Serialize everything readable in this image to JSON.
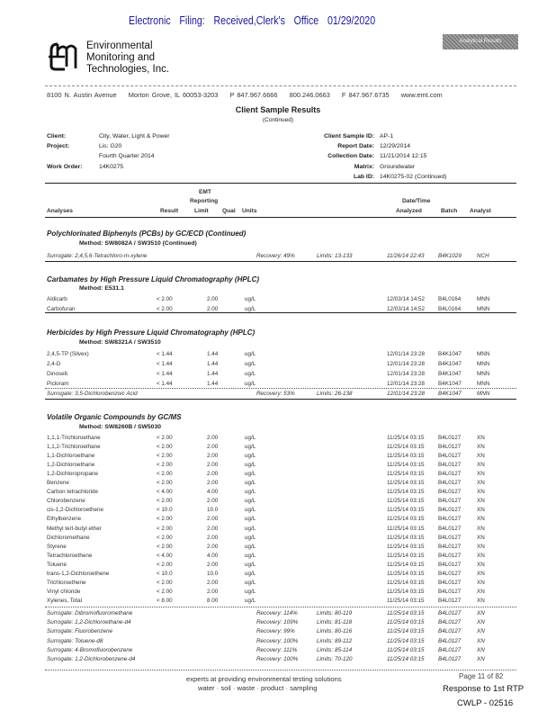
{
  "filing_header": "Electronic Filing: Received,Clerk's Office 01/29/2020",
  "stamp_text": "Analytical Results",
  "company": {
    "name_lines": [
      "Environmental",
      "Monitoring and",
      "Technologies, Inc."
    ],
    "address": [
      "8100 N. Austin Avenue",
      "Morton Grove, IL 60053-3203",
      "P 847.967.6666",
      "800.246.0663",
      "F 847.967.6735",
      "www.emt.com"
    ]
  },
  "report": {
    "title": "Client Sample Results",
    "subtitle": "(Continued)"
  },
  "info": {
    "client_label": "Client:",
    "client": "City, Water, Light & Power",
    "project_label": "Project:",
    "project": "Lis: G20",
    "project2": "Fourth Quarter 2014",
    "work_order_label": "Work Order:",
    "work_order": "14K0275",
    "sample_id_label": "Client Sample ID:",
    "sample_id": "AP-1",
    "report_date_label": "Report Date:",
    "report_date": "12/29/2014",
    "collection_date_label": "Collection Date:",
    "collection_date": "11/21/2014  12:15",
    "matrix_label": "Matrix:",
    "matrix": "Groundwater",
    "lab_id_label": "Lab ID:",
    "lab_id": "14K0275-02 (Continued)"
  },
  "columns": {
    "emt": "EMT",
    "reporting": "Reporting",
    "datetime": "Date/Time",
    "analyses": "Analyses",
    "result": "Result",
    "limit": "Limit",
    "qual": "Qual",
    "units": "Units",
    "analyzed": "Analyzed",
    "batch": "Batch",
    "analyst": "Analyst"
  },
  "sections": [
    {
      "title": "Polychlorinated Biphenyls (PCBs) by GC/ECD (Continued)",
      "method": "Method:  SW8082A / SW3510 (Continued)",
      "rows": [],
      "surrogates": [
        {
          "name": "Surrogate: 2,4,5,6-Tetrachloro-m-xylene",
          "recovery": "Recovery: 49%",
          "limits": "Limits: 13-133",
          "date": "11/26/14 22:43",
          "batch": "B4K1029",
          "analyst": "NCH"
        }
      ]
    },
    {
      "title": "Carbamates by High Pressure Liquid Chromatography (HPLC)",
      "method": "Method:  E531.1",
      "rows": [
        {
          "name": "Aldicarb",
          "result": "< 2.00",
          "limit": "2.00",
          "units": "ug/L",
          "date": "12/03/14 14:52",
          "batch": "B4L0164",
          "analyst": "MNN"
        },
        {
          "name": "Carbofuran",
          "result": "< 2.00",
          "limit": "2.00",
          "units": "ug/L",
          "date": "12/03/14 14:52",
          "batch": "B4L0164",
          "analyst": "MNN"
        }
      ],
      "surrogates": []
    },
    {
      "title": "Herbicides by High Pressure Liquid Chromatography (HPLC)",
      "method": "Method:  SW8321A / SW3510",
      "rows": [
        {
          "name": "2,4,5-TP (Silvex)",
          "result": "< 1.44",
          "limit": "1.44",
          "units": "ug/L",
          "date": "12/01/14 23:28",
          "batch": "B4K1047",
          "analyst": "MNN"
        },
        {
          "name": "2,4-D",
          "result": "< 1.44",
          "limit": "1.44",
          "units": "ug/L",
          "date": "12/01/14 23:28",
          "batch": "B4K1047",
          "analyst": "MNN"
        },
        {
          "name": "Dinoseb",
          "result": "< 1.44",
          "limit": "1.44",
          "units": "ug/L",
          "date": "12/01/14 23:28",
          "batch": "B4K1047",
          "analyst": "MNN"
        },
        {
          "name": "Picloram",
          "result": "< 1.44",
          "limit": "1.44",
          "units": "ug/L",
          "date": "12/01/14 23:28",
          "batch": "B4K1047",
          "analyst": "MNN"
        }
      ],
      "surrogates": [
        {
          "name": "Surrogate: 3,5-Dichlorobenzoic Acid",
          "recovery": "Recovery: 53%",
          "limits": "Limits: 26-138",
          "date": "12/01/14 23:28",
          "batch": "B4K1047",
          "analyst": "MNN"
        }
      ]
    },
    {
      "title": "Volatile Organic Compounds by GC/MS",
      "method": "Method:  SW8260B / SW5030",
      "rows": [
        {
          "name": "1,1,1-Trichloroethane",
          "result": "< 2.00",
          "limit": "2.00",
          "units": "ug/L",
          "date": "11/25/14 03:15",
          "batch": "B4L0127",
          "analyst": "XN"
        },
        {
          "name": "1,1,2-Trichloroethane",
          "result": "< 2.00",
          "limit": "2.00",
          "units": "ug/L",
          "date": "11/25/14 03:15",
          "batch": "B4L0127",
          "analyst": "XN"
        },
        {
          "name": "1,1-Dichloroethane",
          "result": "< 2.00",
          "limit": "2.00",
          "units": "ug/L",
          "date": "11/25/14 03:15",
          "batch": "B4L0127",
          "analyst": "XN"
        },
        {
          "name": "1,2-Dichloroethane",
          "result": "< 2.00",
          "limit": "2.00",
          "units": "ug/L",
          "date": "11/25/14 03:15",
          "batch": "B4L0127",
          "analyst": "XN"
        },
        {
          "name": "1,2-Dichloropropane",
          "result": "< 2.00",
          "limit": "2.00",
          "units": "ug/L",
          "date": "11/25/14 03:15",
          "batch": "B4L0127",
          "analyst": "XN"
        },
        {
          "name": "Benzene",
          "result": "< 2.00",
          "limit": "2.00",
          "units": "ug/L",
          "date": "11/25/14 03:15",
          "batch": "B4L0127",
          "analyst": "XN"
        },
        {
          "name": "Carbon tetrachloride",
          "result": "< 4.00",
          "limit": "4.00",
          "units": "ug/L",
          "date": "11/25/14 03:15",
          "batch": "B4L0127",
          "analyst": "XN"
        },
        {
          "name": "Chlorobenzene",
          "result": "< 2.00",
          "limit": "2.00",
          "units": "ug/L",
          "date": "11/25/14 03:15",
          "batch": "B4L0127",
          "analyst": "XN"
        },
        {
          "name": "cis-1,2-Dichloroethene",
          "result": "< 10.0",
          "limit": "10.0",
          "units": "ug/L",
          "date": "11/25/14 03:15",
          "batch": "B4L0127",
          "analyst": "XN"
        },
        {
          "name": "Ethylbenzene",
          "result": "< 2.00",
          "limit": "2.00",
          "units": "ug/L",
          "date": "11/25/14 03:15",
          "batch": "B4L0127",
          "analyst": "XN"
        },
        {
          "name": "Methyl tert-butyl ether",
          "result": "< 2.00",
          "limit": "2.00",
          "units": "ug/L",
          "date": "11/25/14 03:15",
          "batch": "B4L0127",
          "analyst": "XN"
        },
        {
          "name": "Dichloromethane",
          "result": "< 2.00",
          "limit": "2.00",
          "units": "ug/L",
          "date": "11/25/14 03:15",
          "batch": "B4L0127",
          "analyst": "XN"
        },
        {
          "name": "Styrene",
          "result": "< 2.00",
          "limit": "2.00",
          "units": "ug/L",
          "date": "11/25/14 03:15",
          "batch": "B4L0127",
          "analyst": "XN"
        },
        {
          "name": "Tetrachloroethene",
          "result": "< 4.00",
          "limit": "4.00",
          "units": "ug/L",
          "date": "11/25/14 03:15",
          "batch": "B4L0127",
          "analyst": "XN"
        },
        {
          "name": "Toluene",
          "result": "< 2.00",
          "limit": "2.00",
          "units": "ug/L",
          "date": "11/25/14 03:15",
          "batch": "B4L0127",
          "analyst": "XN"
        },
        {
          "name": "trans-1,2-Dichloroethene",
          "result": "< 10.0",
          "limit": "10.0",
          "units": "ug/L",
          "date": "11/25/14 03:15",
          "batch": "B4L0127",
          "analyst": "XN"
        },
        {
          "name": "Trichloroethene",
          "result": "< 2.00",
          "limit": "2.00",
          "units": "ug/L",
          "date": "11/25/14 03:15",
          "batch": "B4L0127",
          "analyst": "XN"
        },
        {
          "name": "Vinyl chloride",
          "result": "< 2.00",
          "limit": "2.00",
          "units": "ug/L",
          "date": "11/25/14 03:15",
          "batch": "B4L0127",
          "analyst": "XN"
        },
        {
          "name": "Xylenes, Total",
          "result": "< 8.00",
          "limit": "8.00",
          "units": "ug/L",
          "date": "11/25/14 03:15",
          "batch": "B4L0127",
          "analyst": "XN"
        }
      ],
      "surrogates": [
        {
          "name": "Surrogate: Dibromofluoromethane",
          "recovery": "Recovery: 114%",
          "limits": "Limits: 80-119",
          "date": "11/25/14 03:15",
          "batch": "B4L0127",
          "analyst": "XN"
        },
        {
          "name": "Surrogate: 1,2-Dichloroethane-d4",
          "recovery": "Recovery: 109%",
          "limits": "Limits: 81-118",
          "date": "11/25/14 03:15",
          "batch": "B4L0127",
          "analyst": "XN"
        },
        {
          "name": "Surrogate: Fluorobenzene",
          "recovery": "Recovery: 99%",
          "limits": "Limits: 80-116",
          "date": "11/25/14 03:15",
          "batch": "B4L0127",
          "analyst": "XN"
        },
        {
          "name": "Surrogate: Toluene-d8",
          "recovery": "Recovery: 100%",
          "limits": "Limits: 89-112",
          "date": "11/25/14 03:15",
          "batch": "B4L0127",
          "analyst": "XN"
        },
        {
          "name": "Surrogate: 4-Bromofluorobenzene",
          "recovery": "Recovery: 111%",
          "limits": "Limits: 85-114",
          "date": "11/25/14 03:15",
          "batch": "B4L0127",
          "analyst": "XN"
        },
        {
          "name": "Surrogate: 1,2-Dichlorobenzene-d4",
          "recovery": "Recovery: 100%",
          "limits": "Limits: 70-120",
          "date": "11/25/14 03:15",
          "batch": "B4L0127",
          "analyst": "XN"
        }
      ]
    }
  ],
  "footer": {
    "tagline": "experts at providing environmental testing solutions",
    "services": "water  ·  soil  ·  waste  ·  product  ·  sampling",
    "page": "Page 11 of 82",
    "response": "Response to 1st RTP",
    "bates": "CWLP - 02516"
  }
}
